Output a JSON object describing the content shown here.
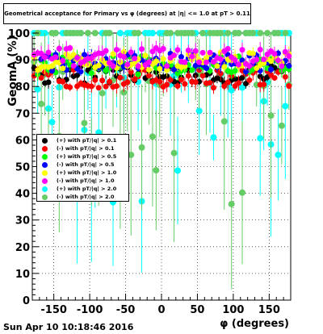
{
  "title": "Geometrical acceptance for Primary vs φ (degrees) at |η| <= 1.0 at pT > 0.11",
  "footer": "Sun Apr 10 10:18:46 2016",
  "chart_data": {
    "type": "scatter",
    "xlabel": "φ (degrees)",
    "ylabel": "GeomA (%)",
    "xlim": [
      -180,
      180
    ],
    "ylim": [
      0,
      100
    ],
    "xticks": [
      -150,
      -100,
      -50,
      0,
      50,
      100,
      150
    ],
    "yticks": [
      0,
      10,
      20,
      30,
      40,
      50,
      60,
      70,
      80,
      90,
      100
    ],
    "grid": true,
    "legend_position": "left-middle",
    "series": [
      {
        "name": "(+) with pT/|q| > 0.1",
        "color": "#000000",
        "base": 84.5
      },
      {
        "name": "(-) with pT/|q| > 0.1",
        "color": "#ff0000",
        "base": 83.0
      },
      {
        "name": "(+) with pT/|q| > 0.5",
        "color": "#00ff00",
        "base": 88.0
      },
      {
        "name": "(-) with pT/|q| > 0.5",
        "color": "#0000ff",
        "base": 89.0
      },
      {
        "name": "(+) with pT/|q| > 1.0",
        "color": "#ffff00",
        "base": 89.5
      },
      {
        "name": "(-) with pT/|q| > 1.0",
        "color": "#ff00ff",
        "base": 91.0
      },
      {
        "name": "(+) with pT/|q| > 2.0",
        "color": "#00ffff",
        "base": 100
      },
      {
        "name": "(-) with pT/|q| > 2.0",
        "color": "#66cc66",
        "base": 100
      }
    ]
  }
}
